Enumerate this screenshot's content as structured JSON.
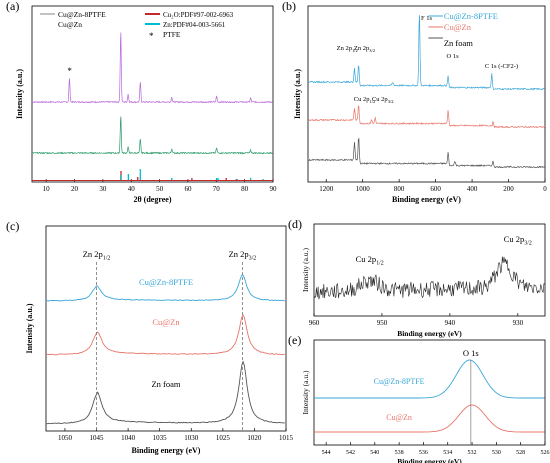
{
  "chart_data": [
    {
      "panel": "(a)",
      "type": "line",
      "xlabel": "2θ (degree)",
      "ylabel": "Intensity (a.u.)",
      "xlim": [
        5,
        90
      ],
      "xticks": [
        10,
        20,
        30,
        40,
        50,
        60,
        70,
        80,
        90
      ],
      "legend": [
        "Cu@Zn-8PTFE",
        "Cu@Zn",
        "Cu₂O:PDF#97-002-6963",
        "Zn:PDF#04-003-5661",
        "PTFE"
      ],
      "series": [
        {
          "name": "Cu@Zn-8PTFE",
          "color": "#b868d8",
          "peaks_2theta": [
            18.2,
            36.3,
            38.9,
            43.2,
            54.3,
            70.1,
            82.1
          ]
        },
        {
          "name": "Cu@Zn",
          "color": "#2a9a6a",
          "peaks_2theta": [
            36.3,
            38.9,
            43.2,
            54.3,
            70.1,
            82.1
          ]
        }
      ],
      "reference_lines": [
        {
          "name": "Cu₂O:PDF#97-002-6963",
          "color": "#c62828",
          "positions": [
            36.4,
            42.3,
            61.4,
            73.5,
            77.3
          ]
        },
        {
          "name": "Zn:PDF#04-003-5661",
          "color": "#00bcd4",
          "positions": [
            36.3,
            38.99,
            43.2,
            54.3,
            70.1,
            70.6,
            77.0,
            82.1,
            86.5
          ]
        }
      ],
      "annotations": [
        "*"
      ]
    },
    {
      "panel": "(b)",
      "type": "line",
      "xlabel": "Binding energy (eV)",
      "ylabel": "Intensity (a.u.)",
      "xlim": [
        1300,
        0
      ],
      "xticks": [
        1200,
        1000,
        800,
        600,
        400,
        200,
        0
      ],
      "series": [
        {
          "name": "Cu@Zn-8PTFE",
          "color": "#3aa7d8"
        },
        {
          "name": "Cu@Zn",
          "color": "#e8756a"
        },
        {
          "name": "Zn foam",
          "color": "#555555"
        }
      ],
      "peak_labels": [
        "Zn 2p1/2",
        "Zn 2p3/2",
        "F 1s",
        "O 1s",
        "C 1s (-CF2-)",
        "Cu 2p1/2",
        "Cu 2p3/2"
      ]
    },
    {
      "panel": "(c)",
      "type": "line",
      "xlabel": "Binding energy (eV)",
      "ylabel": "Intensity (a.u.)",
      "xlim": [
        1053,
        1015
      ],
      "xticks": [
        1050,
        1045,
        1040,
        1035,
        1030,
        1025,
        1020,
        1015
      ],
      "series": [
        {
          "name": "Cu@Zn-8PTFE",
          "color": "#3aa7d8",
          "peaks": [
            1045.0,
            1021.9
          ]
        },
        {
          "name": "Cu@Zn",
          "color": "#e8756a",
          "peaks": [
            1044.9,
            1021.8
          ]
        },
        {
          "name": "Zn foam",
          "color": "#555555",
          "peaks": [
            1044.9,
            1021.8
          ]
        }
      ],
      "peak_labels": [
        "Zn 2p1/2",
        "Zn 2p3/2"
      ]
    },
    {
      "panel": "(d)",
      "type": "line",
      "xlabel": "Binding energy (eV)",
      "ylabel": "Intensity (a.u.)",
      "xlim": [
        960,
        926
      ],
      "xticks": [
        960,
        950,
        940,
        930
      ],
      "series": [
        {
          "name": "",
          "color": "#222222",
          "peaks": [
            951.8,
            932.0
          ]
        }
      ],
      "peak_labels": [
        "Cu 2p1/2",
        "Cu 2p3/2"
      ]
    },
    {
      "panel": "(e)",
      "type": "line",
      "xlabel": "Binding energy (eV)",
      "ylabel": "Intensity (a.u.)",
      "xlim": [
        545,
        526
      ],
      "xticks": [
        544,
        542,
        540,
        538,
        536,
        534,
        532,
        530,
        528,
        526
      ],
      "series": [
        {
          "name": "Cu@Zn-8PTFE",
          "color": "#3aa7d8",
          "peak": 532.2
        },
        {
          "name": "Cu@Zn",
          "color": "#e8756a",
          "peak": 532.0
        }
      ],
      "peak_labels": [
        "O 1s"
      ]
    }
  ]
}
